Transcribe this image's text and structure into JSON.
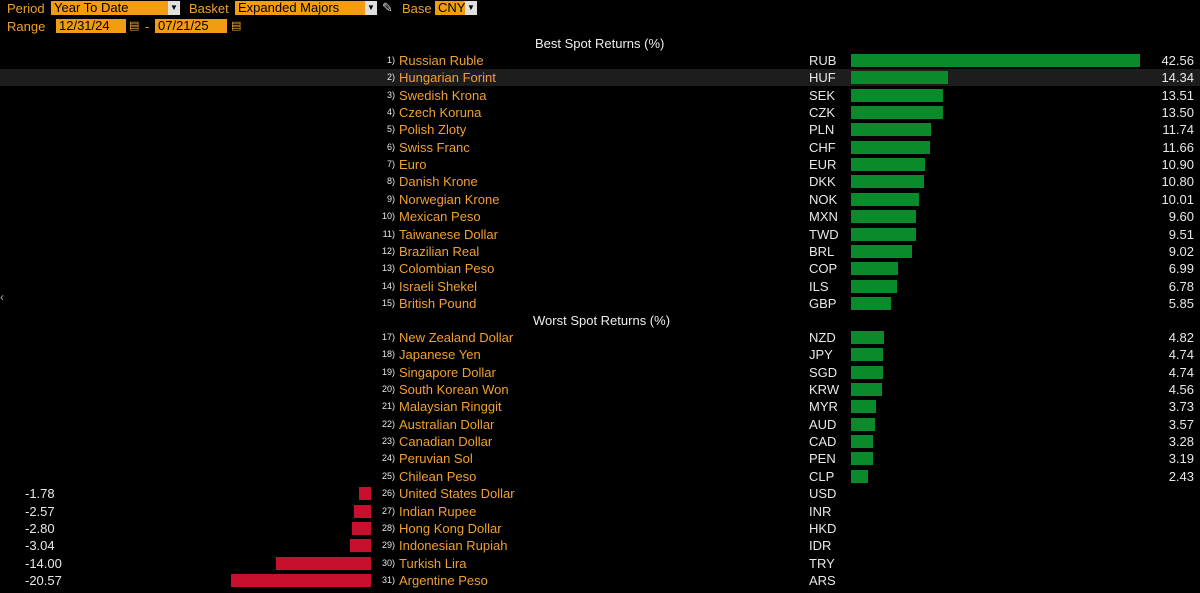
{
  "controls": {
    "period_label": "Period",
    "period_value": "Year To Date",
    "basket_label": "Basket",
    "basket_value": "Expanded Majors",
    "base_label": "Base",
    "base_value": "CNY",
    "range_label": "Range",
    "range_start": "12/31/24",
    "range_sep": "-",
    "range_end": "07/21/25"
  },
  "best_title": "Best Spot Returns (%)",
  "worst_title": "Worst Spot Returns (%)",
  "colors": {
    "positive": "#0b8a2b",
    "negative": "#c8102e",
    "accent": "#f39c12"
  },
  "best": [
    {
      "rank": "1)",
      "name": "Russian Ruble",
      "code": "RUB",
      "value": 42.56
    },
    {
      "rank": "2)",
      "name": "Hungarian Forint",
      "code": "HUF",
      "value": 14.34
    },
    {
      "rank": "3)",
      "name": "Swedish Krona",
      "code": "SEK",
      "value": 13.51
    },
    {
      "rank": "4)",
      "name": "Czech Koruna",
      "code": "CZK",
      "value": 13.5
    },
    {
      "rank": "5)",
      "name": "Polish Zloty",
      "code": "PLN",
      "value": 11.74
    },
    {
      "rank": "6)",
      "name": "Swiss Franc",
      "code": "CHF",
      "value": 11.66
    },
    {
      "rank": "7)",
      "name": "Euro",
      "code": "EUR",
      "value": 10.9
    },
    {
      "rank": "8)",
      "name": "Danish Krone",
      "code": "DKK",
      "value": 10.8
    },
    {
      "rank": "9)",
      "name": "Norwegian Krone",
      "code": "NOK",
      "value": 10.01
    },
    {
      "rank": "10)",
      "name": "Mexican Peso",
      "code": "MXN",
      "value": 9.6
    },
    {
      "rank": "11)",
      "name": "Taiwanese Dollar",
      "code": "TWD",
      "value": 9.51
    },
    {
      "rank": "12)",
      "name": "Brazilian Real",
      "code": "BRL",
      "value": 9.02
    },
    {
      "rank": "13)",
      "name": "Colombian Peso",
      "code": "COP",
      "value": 6.99
    },
    {
      "rank": "14)",
      "name": "Israeli Shekel",
      "code": "ILS",
      "value": 6.78
    },
    {
      "rank": "15)",
      "name": "British Pound",
      "code": "GBP",
      "value": 5.85
    }
  ],
  "worst": [
    {
      "rank": "17)",
      "name": "New Zealand Dollar",
      "code": "NZD",
      "value": 4.82
    },
    {
      "rank": "18)",
      "name": "Japanese Yen",
      "code": "JPY",
      "value": 4.74
    },
    {
      "rank": "19)",
      "name": "Singapore Dollar",
      "code": "SGD",
      "value": 4.74
    },
    {
      "rank": "20)",
      "name": "South Korean Won",
      "code": "KRW",
      "value": 4.56
    },
    {
      "rank": "21)",
      "name": "Malaysian Ringgit",
      "code": "MYR",
      "value": 3.73
    },
    {
      "rank": "22)",
      "name": "Australian Dollar",
      "code": "AUD",
      "value": 3.57
    },
    {
      "rank": "23)",
      "name": "Canadian Dollar",
      "code": "CAD",
      "value": 3.28
    },
    {
      "rank": "24)",
      "name": "Peruvian Sol",
      "code": "PEN",
      "value": 3.19
    },
    {
      "rank": "25)",
      "name": "Chilean Peso",
      "code": "CLP",
      "value": 2.43
    },
    {
      "rank": "26)",
      "name": "United States Dollar",
      "code": "USD",
      "value": -1.78
    },
    {
      "rank": "27)",
      "name": "Indian Rupee",
      "code": "INR",
      "value": -2.57
    },
    {
      "rank": "28)",
      "name": "Hong Kong Dollar",
      "code": "HKD",
      "value": -2.8
    },
    {
      "rank": "29)",
      "name": "Indonesian Rupiah",
      "code": "IDR",
      "value": -3.04
    },
    {
      "rank": "30)",
      "name": "Turkish Lira",
      "code": "TRY",
      "value": -14.0
    },
    {
      "rank": "31)",
      "name": "Argentine Peso",
      "code": "ARS",
      "value": -20.57
    }
  ]
}
